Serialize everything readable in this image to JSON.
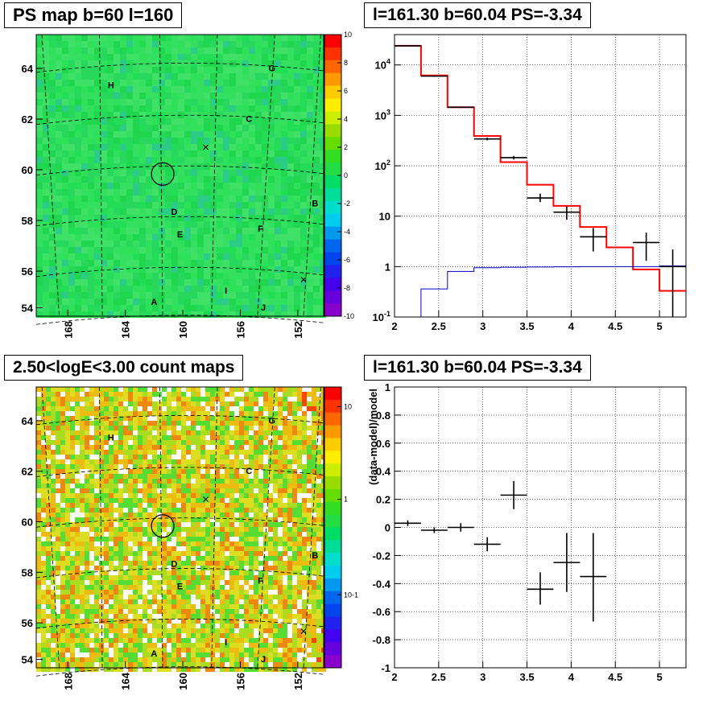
{
  "panels": {
    "map_top_title": "PS map b=60 l=160",
    "map_bottom_title": "2.50<logE<3.00 count maps",
    "spec_top_title": "l=161.30 b=60.04 PS=-3.34",
    "spec_bottom_title": "l=161.30 b=60.04 PS=-3.34"
  },
  "map_axes": {
    "lon_ticks": [
      "168",
      "164",
      "160",
      "156",
      "152"
    ],
    "lat_ticks": [
      "64",
      "62",
      "60",
      "58",
      "56",
      "54"
    ]
  },
  "map_labels": [
    {
      "text": "H"
    },
    {
      "text": "G"
    },
    {
      "text": "C"
    },
    {
      "text": "D"
    },
    {
      "text": "E"
    },
    {
      "text": "F"
    },
    {
      "text": "B"
    },
    {
      "text": "A"
    },
    {
      "text": "I"
    },
    {
      "text": "J"
    }
  ],
  "colorbar_top": [
    "10",
    "8",
    "6",
    "4",
    "2",
    "0",
    "-2",
    "-4",
    "-6",
    "-8",
    "-10"
  ],
  "colorbar_bottom": [
    "10",
    "1",
    "10-1"
  ],
  "chart_data": [
    {
      "type": "line",
      "title": "l=161.30 b=60.04 PS=-3.34",
      "xlim": [
        2,
        5.3
      ],
      "ylim_log": [
        0.1,
        40000
      ],
      "yscale": "log",
      "grid": true,
      "x_ticks": [
        "2",
        "2.5",
        "3",
        "3.5",
        "4",
        "4.5",
        "5"
      ],
      "y_ticks": [
        "10^4",
        "10^3",
        "10^2",
        "10",
        "1",
        "10^-1"
      ],
      "series": [
        {
          "color": "#ff0000",
          "kind": "step",
          "edges": [
            2.0,
            2.3,
            2.6,
            2.9,
            3.2,
            3.5,
            3.8,
            4.1,
            4.4,
            4.7,
            5.0,
            5.3
          ],
          "values": [
            24000,
            6200,
            1450,
            390,
            118,
            42,
            16,
            6.1,
            2.4,
            0.88,
            0.33
          ]
        },
        {
          "color": "#0000cc",
          "kind": "step",
          "edges": [
            2.0,
            2.3,
            2.6,
            2.9,
            3.2,
            3.5,
            3.8,
            4.1,
            4.4,
            4.7,
            5.0,
            5.3
          ],
          "values": [
            0.05,
            0.36,
            0.8,
            0.95,
            0.97,
            0.98,
            0.99,
            1.0,
            1.0,
            1.0,
            1.03
          ]
        },
        {
          "color": "#000000",
          "kind": "errorbar",
          "points": [
            {
              "x": 2.15,
              "y": 24000,
              "xerr": 0.15,
              "lo": 23500,
              "hi": 24500
            },
            {
              "x": 2.45,
              "y": 6000,
              "xerr": 0.15,
              "lo": 5800,
              "hi": 6200
            },
            {
              "x": 2.75,
              "y": 1450,
              "xerr": 0.15,
              "lo": 1400,
              "hi": 1500
            },
            {
              "x": 3.05,
              "y": 340,
              "xerr": 0.15,
              "lo": 320,
              "hi": 360
            },
            {
              "x": 3.35,
              "y": 145,
              "xerr": 0.15,
              "lo": 133,
              "hi": 157
            },
            {
              "x": 3.65,
              "y": 23,
              "xerr": 0.15,
              "lo": 19,
              "hi": 28
            },
            {
              "x": 3.95,
              "y": 12,
              "xerr": 0.15,
              "lo": 8.5,
              "hi": 15.5
            },
            {
              "x": 4.25,
              "y": 3.9,
              "xerr": 0.15,
              "lo": 2.0,
              "hi": 5.8
            },
            {
              "x": 4.85,
              "y": 3.0,
              "xerr": 0.15,
              "lo": 1.3,
              "hi": 4.7
            },
            {
              "x": 5.15,
              "y": 1.0,
              "xerr": 0.15,
              "lo": 0.1,
              "hi": 2.2
            }
          ]
        }
      ]
    },
    {
      "type": "scatter",
      "title": "l=161.30 b=60.04 PS=-3.34",
      "ylabel": "(data-model)/model",
      "xlim": [
        2,
        5.3
      ],
      "ylim": [
        -1,
        1
      ],
      "grid": true,
      "x_ticks": [
        "2",
        "2.5",
        "3",
        "3.5",
        "4",
        "4.5",
        "5"
      ],
      "y_ticks": [
        "1",
        "0.8",
        "0.6",
        "0.4",
        "0.2",
        "0",
        "-0.2",
        "-0.4",
        "-0.6",
        "-0.8",
        "-1"
      ],
      "points": [
        {
          "x": 2.15,
          "y": 0.03,
          "xerr": 0.15,
          "lo": 0.01,
          "hi": 0.05
        },
        {
          "x": 2.45,
          "y": -0.02,
          "xerr": 0.15,
          "lo": -0.04,
          "hi": 0.0
        },
        {
          "x": 2.75,
          "y": 0.0,
          "xerr": 0.15,
          "lo": -0.03,
          "hi": 0.03
        },
        {
          "x": 3.05,
          "y": -0.12,
          "xerr": 0.15,
          "lo": -0.17,
          "hi": -0.07
        },
        {
          "x": 3.35,
          "y": 0.23,
          "xerr": 0.15,
          "lo": 0.13,
          "hi": 0.33
        },
        {
          "x": 3.65,
          "y": -0.44,
          "xerr": 0.15,
          "lo": -0.55,
          "hi": -0.32
        },
        {
          "x": 3.95,
          "y": -0.25,
          "xerr": 0.15,
          "lo": -0.46,
          "hi": -0.04
        },
        {
          "x": 4.25,
          "y": -0.35,
          "xerr": 0.15,
          "lo": -0.67,
          "hi": -0.04
        }
      ]
    }
  ]
}
